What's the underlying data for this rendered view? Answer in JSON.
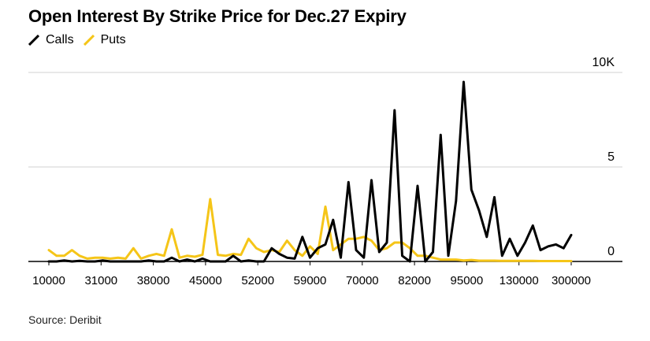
{
  "title": "Open Interest By Strike Price for Dec.27 Expiry",
  "source": "Source: Deribit",
  "legend": [
    {
      "name": "Calls",
      "color": "#000000"
    },
    {
      "name": "Puts",
      "color": "#f5c518"
    }
  ],
  "chart_data": {
    "type": "line",
    "title": "Open Interest By Strike Price for Dec.27 Expiry",
    "xlabel": "",
    "ylabel": "",
    "x_tick_labels": [
      "10000",
      "31000",
      "38000",
      "45000",
      "52000",
      "59000",
      "70000",
      "82000",
      "95000",
      "130000",
      "300000"
    ],
    "y_tick_labels": [
      "10K",
      "5",
      "0"
    ],
    "ylim": [
      0,
      10000
    ],
    "grid": true,
    "legend_position": "top-left",
    "series": [
      {
        "name": "Calls",
        "color": "#000000",
        "values": [
          0,
          0,
          50,
          0,
          30,
          0,
          0,
          50,
          0,
          0,
          0,
          0,
          0,
          50,
          0,
          0,
          200,
          0,
          100,
          0,
          150,
          0,
          0,
          0,
          300,
          0,
          50,
          0,
          0,
          700,
          400,
          200,
          150,
          1300,
          200,
          700,
          900,
          2200,
          200,
          4200,
          600,
          200,
          4300,
          500,
          1000,
          8000,
          300,
          0,
          4000,
          0,
          500,
          6700,
          300,
          3200,
          9500,
          3800,
          2700,
          1300,
          3400,
          300,
          1200,
          300,
          1000,
          1900,
          600,
          800,
          900,
          700,
          1400
        ]
      },
      {
        "name": "Puts",
        "color": "#f5c518",
        "values": [
          600,
          300,
          300,
          600,
          300,
          150,
          200,
          200,
          150,
          200,
          150,
          700,
          150,
          300,
          400,
          300,
          1700,
          200,
          300,
          250,
          350,
          3300,
          350,
          300,
          400,
          350,
          1200,
          700,
          500,
          600,
          500,
          1100,
          600,
          300,
          800,
          400,
          2900,
          600,
          900,
          1200,
          1200,
          1300,
          1100,
          600,
          700,
          1000,
          1000,
          700,
          300,
          300,
          200,
          100,
          100,
          100,
          50,
          80,
          40,
          40,
          40,
          30,
          30,
          30,
          30,
          30,
          20,
          20,
          20,
          20,
          20
        ]
      }
    ]
  }
}
